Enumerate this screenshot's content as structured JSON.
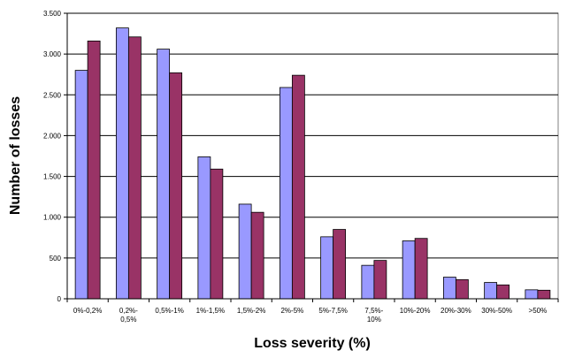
{
  "chart_data": {
    "type": "bar",
    "title": "",
    "xlabel": "Loss severity (%)",
    "ylabel": "Number of losses",
    "ylim": [
      0,
      3500
    ],
    "yticks": [
      0,
      500,
      1000,
      1500,
      2000,
      2500,
      3000,
      3500
    ],
    "ytick_labels": [
      "0",
      "500",
      "1.000",
      "1.500",
      "2.000",
      "2.500",
      "3.000",
      "3.500"
    ],
    "grid": true,
    "legend": "none",
    "categories": [
      "0%-0,2%",
      "0,2%-0,5%",
      "0,5%-1%",
      "1%-1,5%",
      "1,5%-2%",
      "2%-5%",
      "5%-7,5%",
      "7,5%-10%",
      "10%-20%",
      "20%-30%",
      "30%-50%",
      ">50%"
    ],
    "category_lines": [
      [
        "0%-0,2%"
      ],
      [
        "0,2%-",
        "0,5%"
      ],
      [
        "0,5%-1%"
      ],
      [
        "1%-1,5%"
      ],
      [
        "1,5%-2%"
      ],
      [
        "2%-5%"
      ],
      [
        "5%-7,5%"
      ],
      [
        "7,5%-",
        "10%"
      ],
      [
        "10%-20%"
      ],
      [
        "20%-30%"
      ],
      [
        "30%-50%"
      ],
      [
        ">50%"
      ]
    ],
    "series": [
      {
        "values": [
          2800,
          3320,
          3060,
          1740,
          1160,
          2590,
          760,
          410,
          710,
          265,
          200,
          110
        ],
        "color": "#9999ff"
      },
      {
        "values": [
          3160,
          3210,
          2770,
          1590,
          1060,
          2740,
          850,
          470,
          740,
          235,
          170,
          105
        ],
        "color": "#993366"
      }
    ]
  }
}
